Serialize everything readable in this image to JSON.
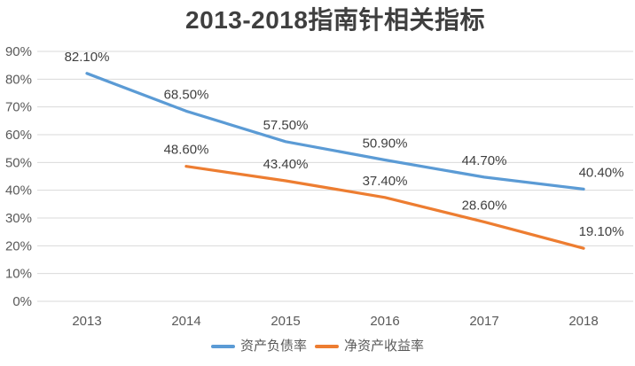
{
  "chart_data": {
    "type": "line",
    "title": "2013-2018指南针相关指标",
    "categories": [
      "2013",
      "2014",
      "2015",
      "2016",
      "2017",
      "2018"
    ],
    "y_ticks": [
      "0%",
      "10%",
      "20%",
      "30%",
      "40%",
      "50%",
      "60%",
      "70%",
      "80%",
      "90%"
    ],
    "ylim": [
      0,
      90
    ],
    "grid": true,
    "legend_position": "bottom",
    "series": [
      {
        "name": "资产负债率",
        "color": "#5B9BD5",
        "values": [
          82.1,
          68.5,
          57.5,
          50.9,
          44.7,
          40.4
        ],
        "labels": [
          "82.10%",
          "68.50%",
          "57.50%",
          "50.90%",
          "44.70%",
          "40.40%"
        ]
      },
      {
        "name": "净资产收益率",
        "color": "#ED7D31",
        "values": [
          null,
          48.6,
          43.4,
          37.4,
          28.6,
          19.1
        ],
        "labels": [
          null,
          "48.60%",
          "43.40%",
          "37.40%",
          "28.60%",
          "19.10%"
        ]
      }
    ]
  },
  "colors": {
    "title_text": "#3F3F3F",
    "axis_text": "#595959",
    "data_label_text": "#404040",
    "gridline": "#D9D9D9",
    "background": "#FFFFFF"
  }
}
